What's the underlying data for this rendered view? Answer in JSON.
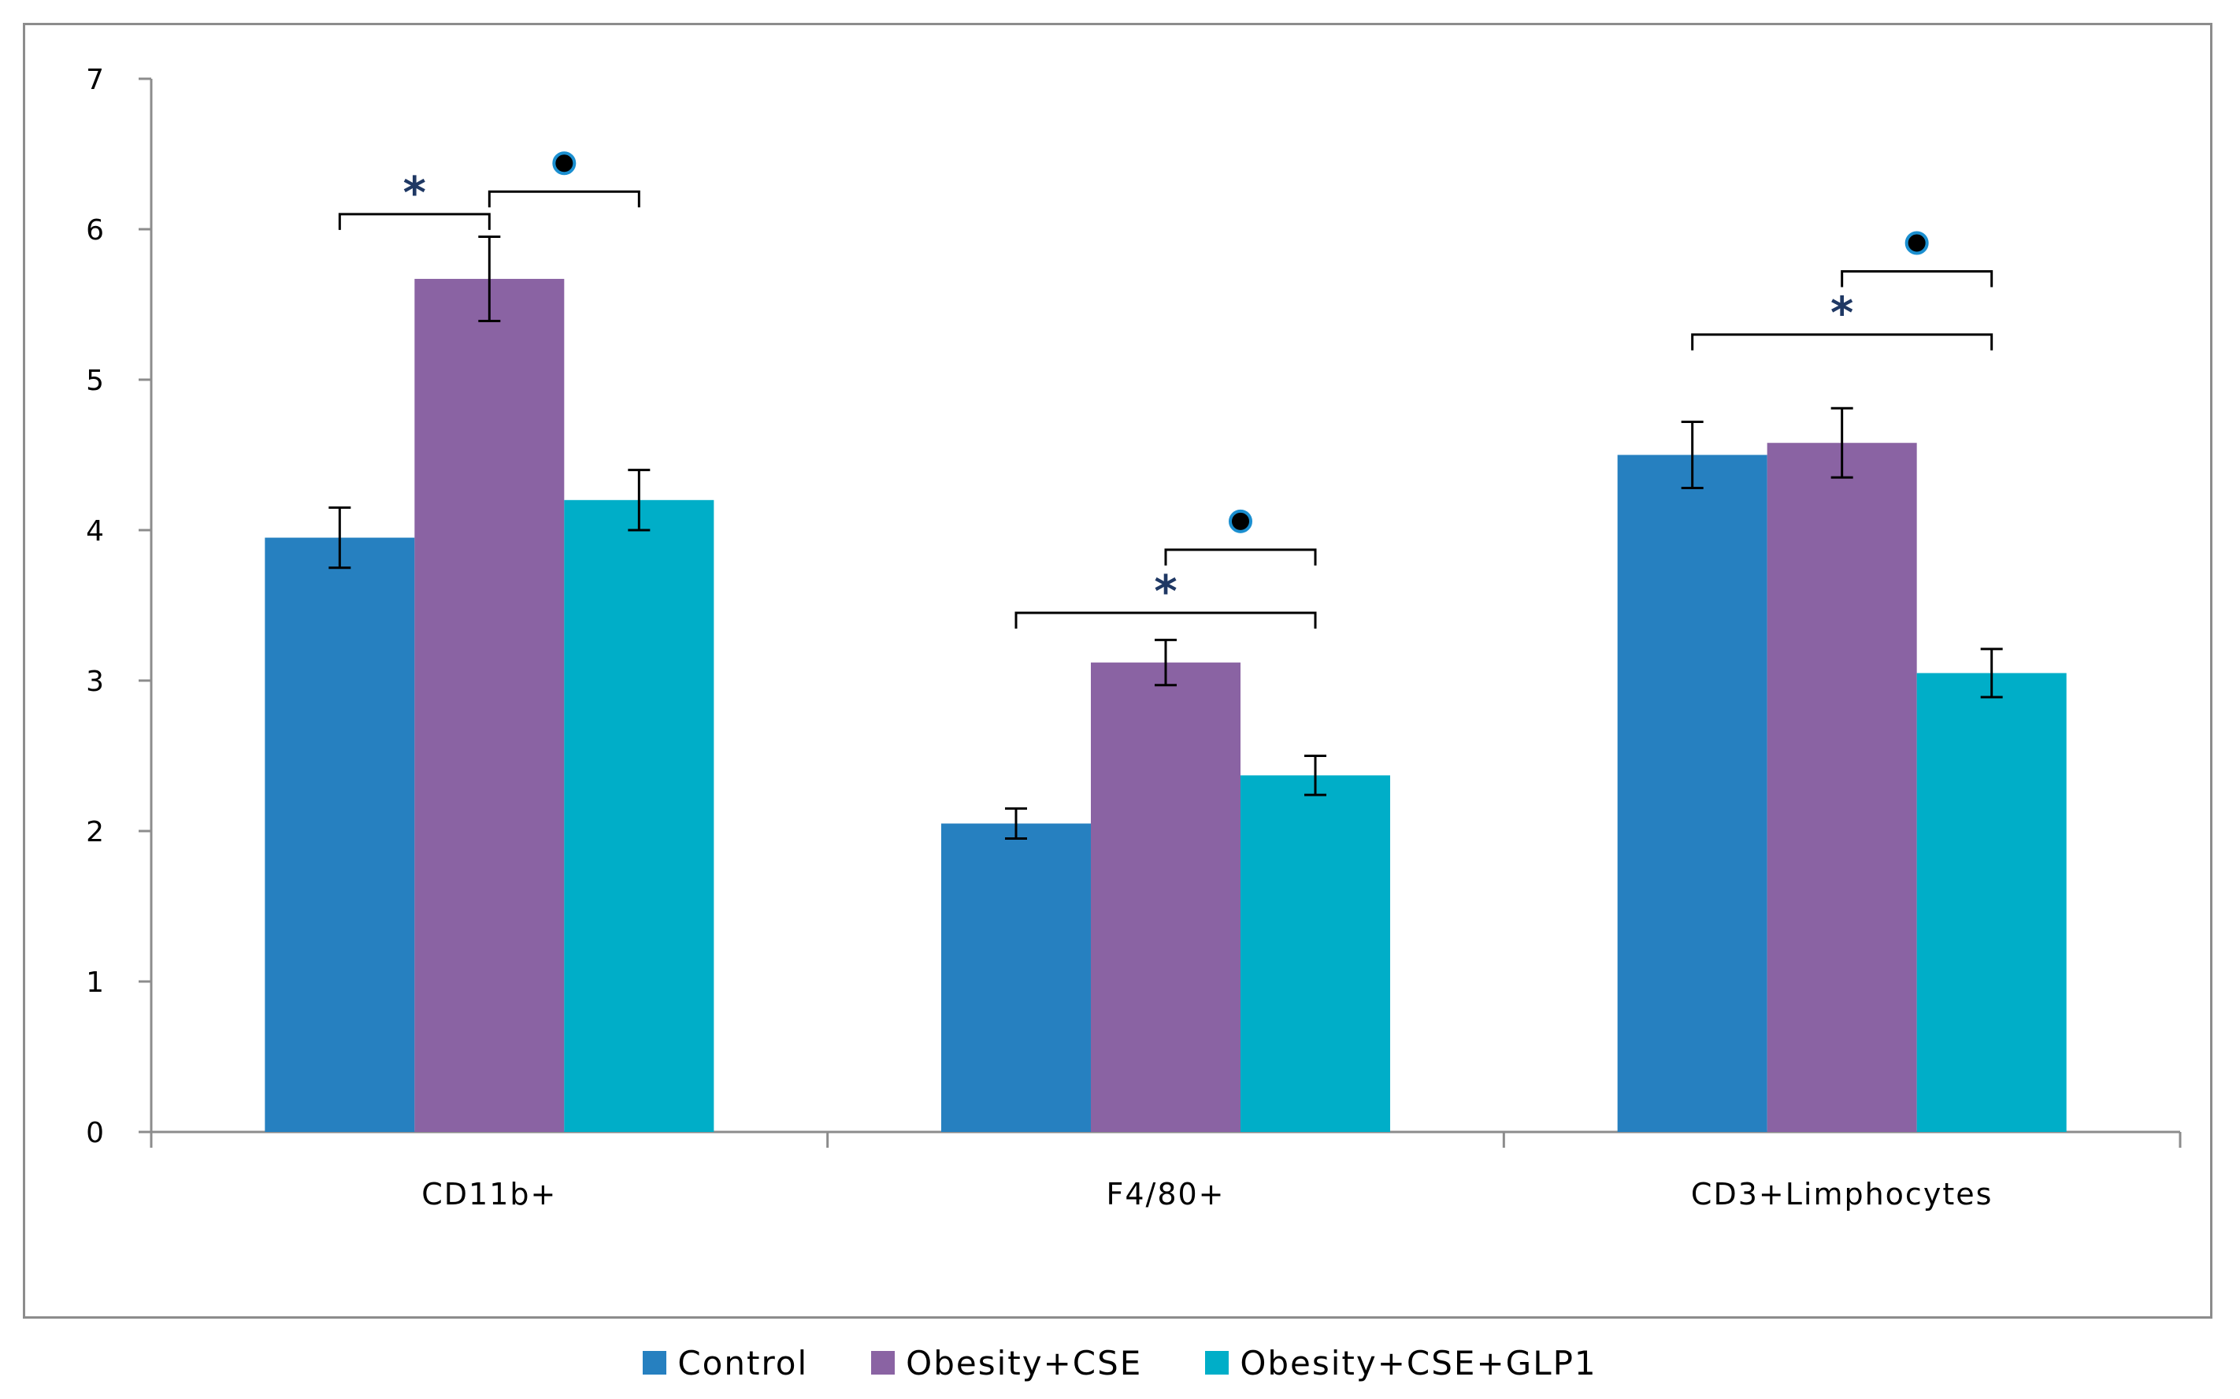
{
  "chart_data": {
    "type": "bar",
    "title": "",
    "xlabel": "",
    "ylabel": "",
    "ylim": [
      0,
      7
    ],
    "yticks": [
      0,
      1,
      2,
      3,
      4,
      5,
      6,
      7
    ],
    "grid": false,
    "legend_position": "bottom",
    "categories": [
      "CD11b+",
      "F4/80+",
      "CD3+Limphocytes"
    ],
    "series": [
      {
        "name": "Control",
        "color": "#2680c0",
        "values": [
          3.95,
          2.05,
          4.5
        ],
        "errors": [
          0.2,
          0.1,
          0.22
        ]
      },
      {
        "name": "Obesity+CSE",
        "color": "#8a63a3",
        "values": [
          5.67,
          3.12,
          4.58
        ],
        "errors": [
          0.28,
          0.15,
          0.23
        ]
      },
      {
        "name": "Obesity+CSE+GLP1",
        "color": "#00aec8",
        "values": [
          4.2,
          2.37,
          3.05
        ],
        "errors": [
          0.2,
          0.13,
          0.16
        ]
      }
    ],
    "annotations": [
      {
        "category": 0,
        "from": 0,
        "to": 1,
        "symbol": "*",
        "level": 6.1
      },
      {
        "category": 0,
        "from": 1,
        "to": 2,
        "symbol": "●",
        "level": 6.25
      },
      {
        "category": 1,
        "from": 0,
        "to": 2,
        "symbol": "*",
        "level": 3.45
      },
      {
        "category": 1,
        "from": 1,
        "to": 2,
        "symbol": "●",
        "level": 3.87
      },
      {
        "category": 2,
        "from": 0,
        "to": 2,
        "symbol": "*",
        "level": 5.3
      },
      {
        "category": 2,
        "from": 1,
        "to": 2,
        "symbol": "●",
        "level": 5.72
      }
    ]
  }
}
